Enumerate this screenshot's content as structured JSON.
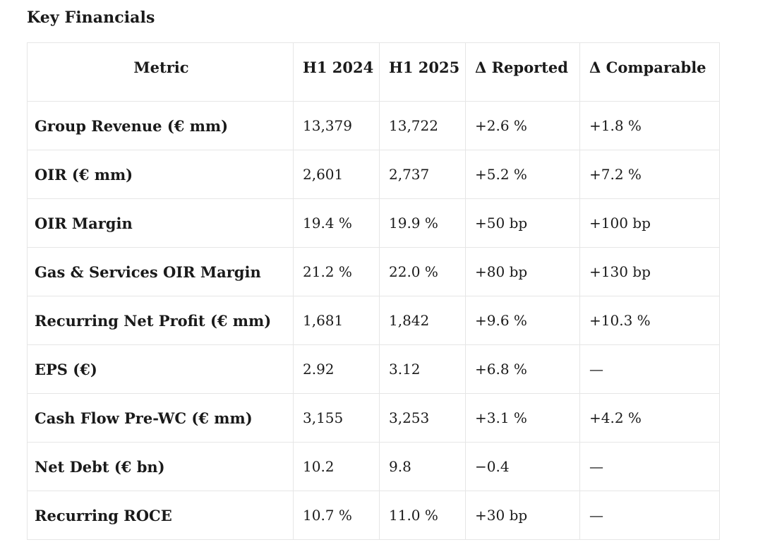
{
  "title": "Key Financials",
  "table": {
    "headers": [
      "Metric",
      "H1 2024",
      "H1 2025",
      "Δ Reported",
      "Δ Comparable"
    ],
    "rows": [
      [
        "Group Revenue (€ mm)",
        "13,379",
        "13,722",
        "+2.6 %",
        "+1.8 %"
      ],
      [
        "OIR (€ mm)",
        "2,601",
        "2,737",
        "+5.2 %",
        "+7.2 %"
      ],
      [
        "OIR Margin",
        "19.4 %",
        "19.9 %",
        "+50 bp",
        "+100 bp"
      ],
      [
        "Gas & Services OIR Margin",
        "21.2 %",
        "22.0 %",
        "+80 bp",
        "+130 bp"
      ],
      [
        "Recurring Net Profit (€ mm)",
        "1,681",
        "1,842",
        "+9.6 %",
        "+10.3 %"
      ],
      [
        "EPS (€)",
        "2.92",
        "3.12",
        "+6.8 %",
        "—"
      ],
      [
        "Cash Flow Pre-WC (€ mm)",
        "3,155",
        "3,253",
        "+3.1 %",
        "+4.2 %"
      ],
      [
        "Net Debt (€ bn)",
        "10.2",
        "9.8",
        "−0.4",
        "—"
      ],
      [
        "Recurring ROCE",
        "10.7 %",
        "11.0 %",
        "+30 bp",
        "—"
      ]
    ]
  }
}
